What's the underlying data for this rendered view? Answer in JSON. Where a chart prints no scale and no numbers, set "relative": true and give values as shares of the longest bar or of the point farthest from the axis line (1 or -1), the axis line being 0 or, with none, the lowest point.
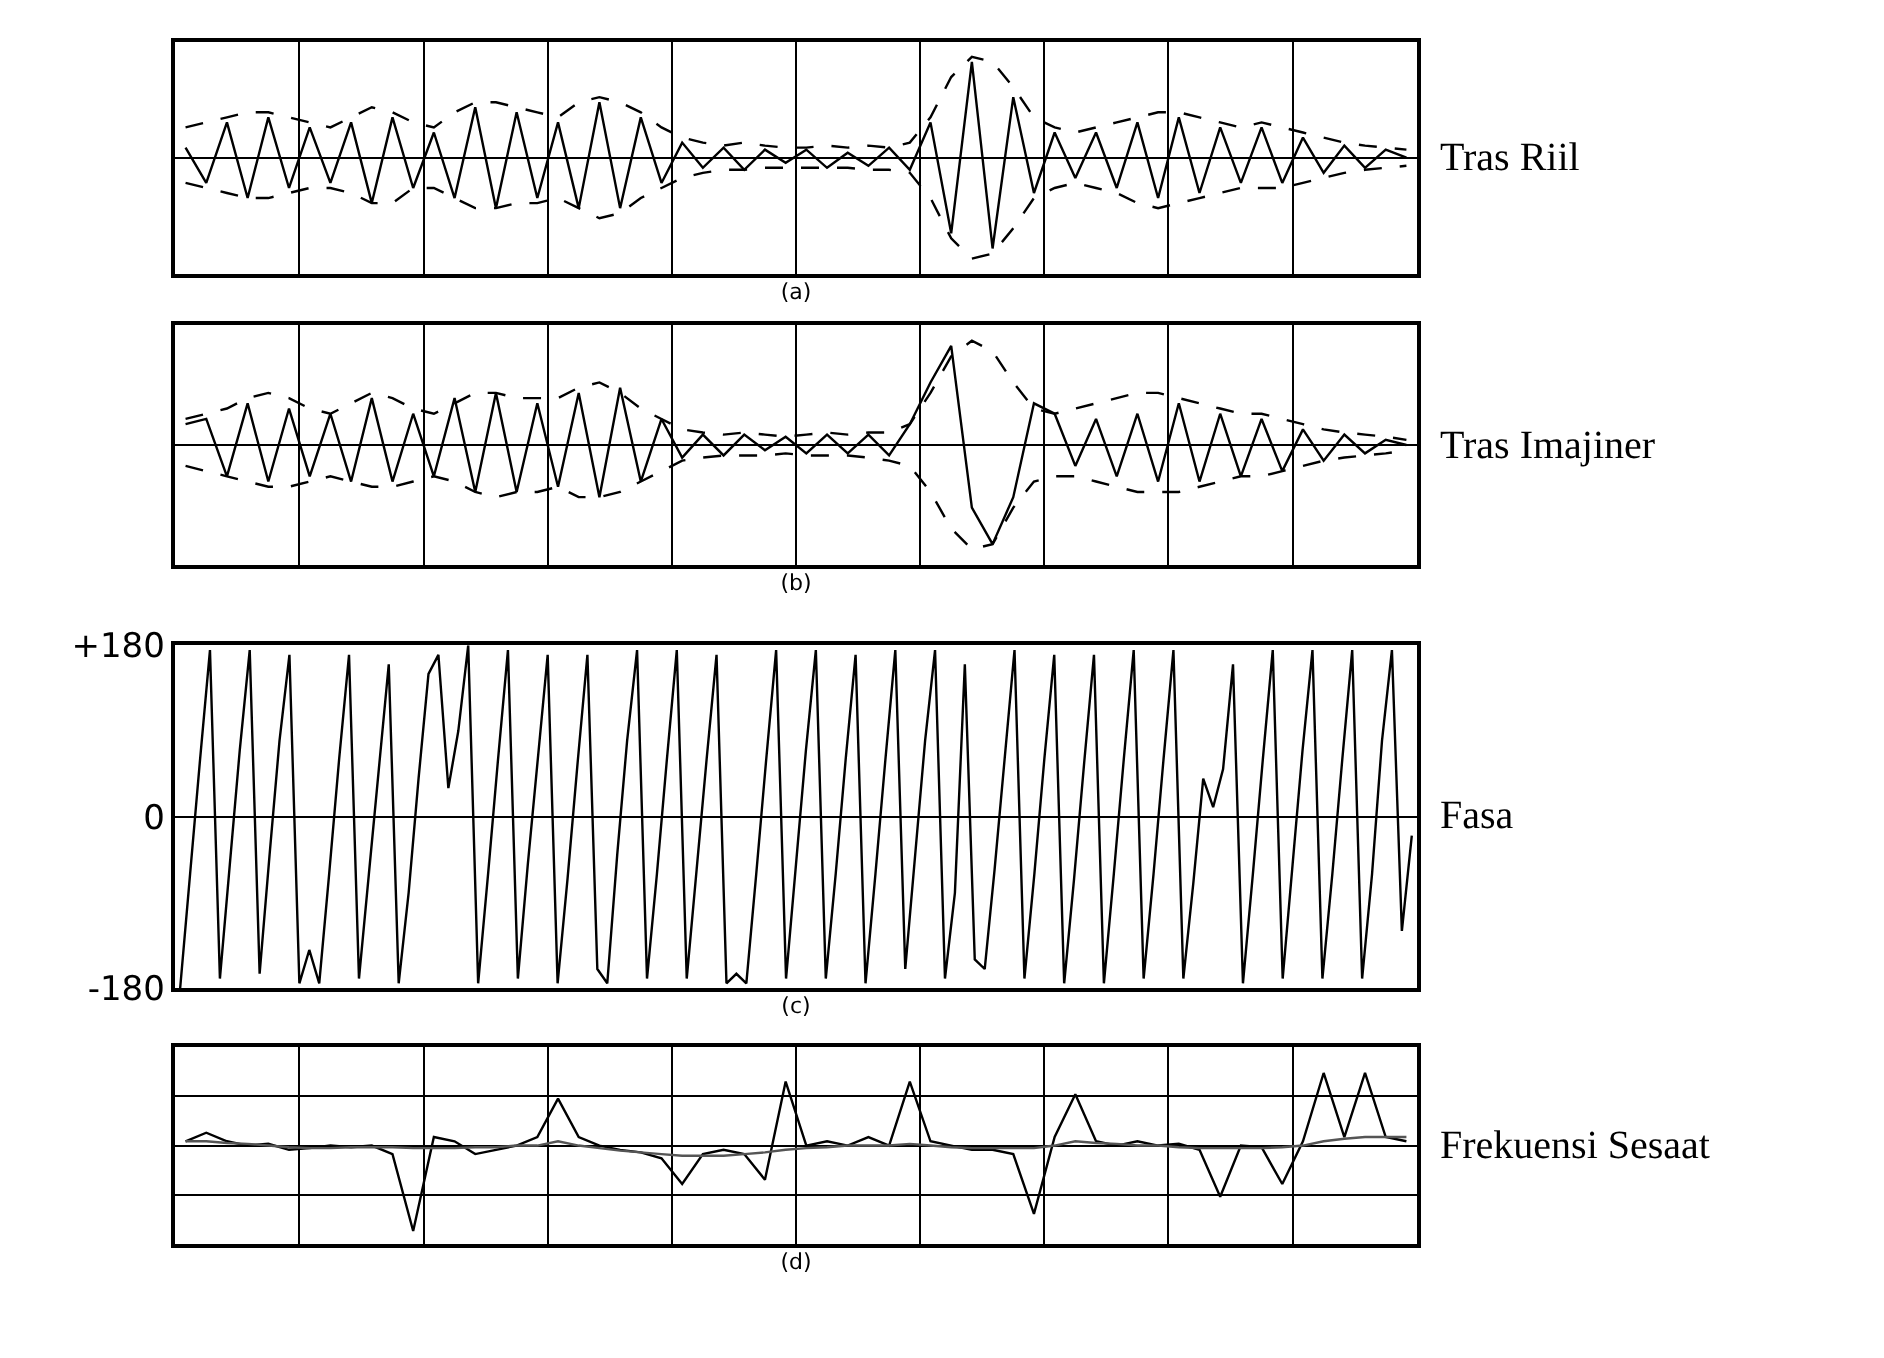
{
  "chart_data": [
    {
      "type": "line",
      "annotations": [
        "Tras Riil"
      ],
      "xlabel": "(a)",
      "relative": true,
      "grid": "x",
      "categories": [
        null,
        null,
        null,
        null,
        null,
        null,
        null,
        null,
        null,
        null,
        null,
        null,
        null,
        null,
        null,
        null,
        null,
        null,
        null,
        null,
        null,
        null,
        null,
        null,
        null,
        null,
        null,
        null,
        null,
        null,
        null,
        null,
        null,
        null,
        null,
        null,
        null,
        null,
        null,
        null,
        null,
        null,
        null,
        null,
        null,
        null,
        null,
        null,
        null,
        null,
        null,
        null,
        null,
        null,
        null,
        null,
        null,
        null,
        null,
        null
      ],
      "series": [
        {
          "color": "#000000",
          "line_style": "solid",
          "values": [
            0.1,
            -0.25,
            0.35,
            -0.4,
            0.4,
            -0.3,
            0.3,
            -0.25,
            0.35,
            -0.45,
            0.4,
            -0.3,
            0.25,
            -0.4,
            0.5,
            -0.5,
            0.45,
            -0.4,
            0.35,
            -0.5,
            0.55,
            -0.5,
            0.4,
            -0.25,
            0.15,
            -0.1,
            0.1,
            -0.12,
            0.08,
            -0.05,
            0.08,
            -0.1,
            0.05,
            -0.08,
            0.1,
            -0.12,
            0.35,
            -0.75,
            0.95,
            -0.9,
            0.6,
            -0.35,
            0.25,
            -0.2,
            0.25,
            -0.3,
            0.35,
            -0.4,
            0.4,
            -0.35,
            0.3,
            -0.25,
            0.3,
            -0.25,
            0.2,
            -0.15,
            0.12,
            -0.1,
            0.08,
            0
          ]
        },
        {
          "color": "#000000",
          "line_style": "dashed",
          "values": [
            0.3,
            0.35,
            0.4,
            0.45,
            0.45,
            0.4,
            0.35,
            0.3,
            0.4,
            0.5,
            0.45,
            0.35,
            0.3,
            0.45,
            0.55,
            0.55,
            0.5,
            0.45,
            0.4,
            0.55,
            0.6,
            0.55,
            0.45,
            0.3,
            0.2,
            0.15,
            0.12,
            0.15,
            0.12,
            0.1,
            0.1,
            0.12,
            0.1,
            0.12,
            0.1,
            0.15,
            0.4,
            0.8,
            1.0,
            0.95,
            0.7,
            0.4,
            0.3,
            0.25,
            0.3,
            0.35,
            0.4,
            0.45,
            0.45,
            0.4,
            0.35,
            0.3,
            0.35,
            0.3,
            0.25,
            0.2,
            0.15,
            0.12,
            0.1,
            0.08
          ]
        },
        {
          "color": "#000000",
          "line_style": "dashed",
          "values": [
            -0.25,
            -0.3,
            -0.35,
            -0.4,
            -0.4,
            -0.35,
            -0.3,
            -0.3,
            -0.35,
            -0.45,
            -0.45,
            -0.3,
            -0.3,
            -0.4,
            -0.5,
            -0.5,
            -0.45,
            -0.45,
            -0.4,
            -0.5,
            -0.6,
            -0.55,
            -0.4,
            -0.3,
            -0.2,
            -0.15,
            -0.12,
            -0.12,
            -0.1,
            -0.1,
            -0.1,
            -0.1,
            -0.1,
            -0.12,
            -0.12,
            -0.15,
            -0.4,
            -0.8,
            -1.0,
            -0.95,
            -0.7,
            -0.4,
            -0.3,
            -0.25,
            -0.3,
            -0.35,
            -0.45,
            -0.5,
            -0.45,
            -0.4,
            -0.35,
            -0.3,
            -0.3,
            -0.3,
            -0.25,
            -0.2,
            -0.15,
            -0.12,
            -0.1,
            -0.08
          ]
        }
      ]
    },
    {
      "type": "line",
      "annotations": [
        "Tras Imajiner"
      ],
      "xlabel": "(b)",
      "relative": true,
      "grid": "x",
      "categories": [
        null,
        null,
        null,
        null,
        null,
        null,
        null,
        null,
        null,
        null,
        null,
        null,
        null,
        null,
        null,
        null,
        null,
        null,
        null,
        null,
        null,
        null,
        null,
        null,
        null,
        null,
        null,
        null,
        null,
        null,
        null,
        null,
        null,
        null,
        null,
        null,
        null,
        null,
        null,
        null,
        null,
        null,
        null,
        null,
        null,
        null,
        null,
        null,
        null,
        null,
        null,
        null,
        null,
        null,
        null,
        null,
        null,
        null,
        null,
        null
      ],
      "series": [
        {
          "color": "#000000",
          "line_style": "solid",
          "values": [
            0.2,
            0.25,
            -0.3,
            0.4,
            -0.35,
            0.35,
            -0.3,
            0.3,
            -0.35,
            0.45,
            -0.35,
            0.3,
            -0.3,
            0.45,
            -0.45,
            0.5,
            -0.45,
            0.4,
            -0.4,
            0.5,
            -0.5,
            0.55,
            -0.35,
            0.25,
            -0.12,
            0.1,
            -0.1,
            0.1,
            -0.05,
            0.08,
            -0.08,
            0.1,
            -0.08,
            0.1,
            -0.1,
            0.2,
            0.6,
            0.95,
            -0.6,
            -0.95,
            -0.5,
            0.4,
            0.3,
            -0.2,
            0.25,
            -0.3,
            0.3,
            -0.35,
            0.4,
            -0.35,
            0.3,
            -0.3,
            0.25,
            -0.25,
            0.15,
            -0.15,
            0.1,
            -0.08,
            0.05,
            0
          ]
        },
        {
          "color": "#000000",
          "line_style": "dashed",
          "values": [
            0.25,
            0.3,
            0.35,
            0.45,
            0.5,
            0.45,
            0.35,
            0.3,
            0.4,
            0.5,
            0.45,
            0.35,
            0.3,
            0.4,
            0.5,
            0.5,
            0.45,
            0.45,
            0.45,
            0.55,
            0.6,
            0.5,
            0.35,
            0.25,
            0.15,
            0.12,
            0.1,
            0.12,
            0.1,
            0.08,
            0.1,
            0.12,
            0.1,
            0.12,
            0.12,
            0.2,
            0.5,
            0.85,
            1.0,
            0.9,
            0.6,
            0.35,
            0.3,
            0.35,
            0.4,
            0.45,
            0.5,
            0.5,
            0.45,
            0.4,
            0.35,
            0.3,
            0.3,
            0.25,
            0.2,
            0.15,
            0.12,
            0.1,
            0.08,
            0.05
          ]
        },
        {
          "color": "#000000",
          "line_style": "dashed",
          "values": [
            -0.2,
            -0.25,
            -0.3,
            -0.35,
            -0.4,
            -0.4,
            -0.35,
            -0.3,
            -0.35,
            -0.4,
            -0.4,
            -0.35,
            -0.3,
            -0.35,
            -0.45,
            -0.5,
            -0.45,
            -0.45,
            -0.4,
            -0.5,
            -0.5,
            -0.45,
            -0.35,
            -0.25,
            -0.15,
            -0.12,
            -0.1,
            -0.1,
            -0.1,
            -0.08,
            -0.1,
            -0.1,
            -0.1,
            -0.12,
            -0.15,
            -0.2,
            -0.45,
            -0.8,
            -1.0,
            -0.95,
            -0.6,
            -0.35,
            -0.3,
            -0.3,
            -0.35,
            -0.4,
            -0.45,
            -0.45,
            -0.45,
            -0.4,
            -0.35,
            -0.3,
            -0.3,
            -0.25,
            -0.2,
            -0.15,
            -0.12,
            -0.1,
            -0.08,
            -0.05
          ]
        }
      ]
    },
    {
      "type": "line",
      "annotations": [
        "Fasa"
      ],
      "xlabel": "(c)",
      "ylim": [
        -180,
        180
      ],
      "yticks": [
        {
          "value": 180,
          "label": "+180"
        },
        0,
        -180
      ],
      "grid": "y",
      "categories": [
        null,
        null,
        null,
        null,
        null,
        null,
        null,
        null,
        null,
        null,
        null,
        null,
        null,
        null,
        null,
        null,
        null,
        null,
        null,
        null,
        null,
        null,
        null,
        null,
        null,
        null,
        null,
        null,
        null,
        null,
        null,
        null,
        null,
        null,
        null,
        null,
        null,
        null,
        null,
        null,
        null,
        null,
        null,
        null,
        null,
        null,
        null,
        null,
        null,
        null,
        null,
        null,
        null,
        null,
        null,
        null,
        null,
        null,
        null,
        null,
        null,
        null,
        null,
        null,
        null,
        null,
        null,
        null,
        null,
        null,
        null,
        null,
        null,
        null,
        null,
        null,
        null,
        null,
        null,
        null,
        null,
        null,
        null,
        null,
        null,
        null,
        null,
        null,
        null,
        null,
        null,
        null,
        null,
        null,
        null,
        null,
        null,
        null,
        null,
        null,
        null,
        null,
        null,
        null,
        null,
        null,
        null,
        null,
        null,
        null,
        null,
        null,
        null,
        null,
        null,
        null,
        null,
        null,
        null,
        null,
        null,
        null,
        null,
        null,
        null
      ],
      "series": [
        {
          "color": "#000000",
          "line_style": "solid",
          "values": [
            -180,
            -60,
            60,
            175,
            -170,
            -50,
            70,
            175,
            -165,
            -40,
            80,
            170,
            -175,
            -140,
            -175,
            -60,
            60,
            170,
            -170,
            -60,
            50,
            160,
            -175,
            -80,
            40,
            150,
            170,
            30,
            90,
            180,
            -175,
            -60,
            60,
            175,
            -170,
            -50,
            60,
            170,
            -175,
            -65,
            55,
            170,
            -160,
            -175,
            -40,
            80,
            175,
            -170,
            -60,
            60,
            175,
            -170,
            -55,
            60,
            170,
            -175,
            -165,
            -175,
            -60,
            60,
            175,
            -170,
            -50,
            70,
            175,
            -170,
            -60,
            60,
            170,
            -175,
            -60,
            60,
            175,
            -160,
            -40,
            80,
            175,
            -170,
            -80,
            160,
            -150,
            -160,
            -55,
            60,
            175,
            -170,
            -60,
            60,
            170,
            -175,
            -65,
            55,
            170,
            -175,
            -60,
            60,
            175,
            -170,
            -60,
            60,
            175,
            -170,
            -70,
            40,
            10,
            50,
            160,
            -175,
            -60,
            60,
            175,
            -170,
            -50,
            70,
            175,
            -170,
            -60,
            60,
            175,
            -170,
            -60,
            80,
            175,
            -120,
            -20
          ]
        }
      ]
    },
    {
      "type": "line",
      "annotations": [
        "Frekuensi Sesaat"
      ],
      "xlabel": "(d)",
      "relative": true,
      "grid": true,
      "categories": [
        null,
        null,
        null,
        null,
        null,
        null,
        null,
        null,
        null,
        null,
        null,
        null,
        null,
        null,
        null,
        null,
        null,
        null,
        null,
        null,
        null,
        null,
        null,
        null,
        null,
        null,
        null,
        null,
        null,
        null,
        null,
        null,
        null,
        null,
        null,
        null,
        null,
        null,
        null,
        null,
        null,
        null,
        null,
        null,
        null,
        null,
        null,
        null,
        null,
        null,
        null,
        null,
        null,
        null,
        null,
        null,
        null,
        null,
        null,
        null
      ],
      "series": [
        {
          "color": "#000000",
          "line_style": "solid",
          "values": [
            0.05,
            0.15,
            0.05,
            0.0,
            0.02,
            -0.05,
            -0.03,
            0.0,
            -0.02,
            0.0,
            -0.1,
            -1.0,
            0.1,
            0.05,
            -0.1,
            -0.05,
            0.0,
            0.1,
            0.55,
            0.1,
            0.0,
            -0.05,
            -0.08,
            -0.15,
            -0.45,
            -0.1,
            -0.05,
            -0.1,
            -0.4,
            0.75,
            0.0,
            0.05,
            0.0,
            0.1,
            0.0,
            0.75,
            0.05,
            0.0,
            -0.05,
            -0.05,
            -0.1,
            -0.8,
            0.1,
            0.6,
            0.05,
            0.0,
            0.05,
            0.0,
            0.02,
            -0.05,
            -0.6,
            0.0,
            -0.02,
            -0.45,
            0.05,
            0.85,
            0.1,
            0.85,
            0.1,
            0.05
          ]
        },
        {
          "color": "#555555",
          "line_style": "solid",
          "values": [
            0.05,
            0.05,
            0.03,
            0.02,
            0.0,
            -0.02,
            -0.03,
            -0.03,
            -0.02,
            -0.02,
            -0.02,
            -0.03,
            -0.03,
            -0.03,
            -0.02,
            -0.02,
            0.0,
            0.0,
            0.05,
            0.0,
            -0.03,
            -0.06,
            -0.08,
            -0.1,
            -0.12,
            -0.12,
            -0.12,
            -0.1,
            -0.08,
            -0.05,
            -0.03,
            -0.02,
            0.0,
            0.0,
            0.0,
            0.02,
            0.0,
            -0.02,
            -0.03,
            -0.03,
            -0.03,
            -0.03,
            0.0,
            0.05,
            0.03,
            0.02,
            0.0,
            0.0,
            -0.02,
            -0.03,
            -0.03,
            -0.03,
            -0.03,
            -0.02,
            0.0,
            0.05,
            0.08,
            0.1,
            0.1,
            0.1
          ]
        }
      ]
    }
  ]
}
